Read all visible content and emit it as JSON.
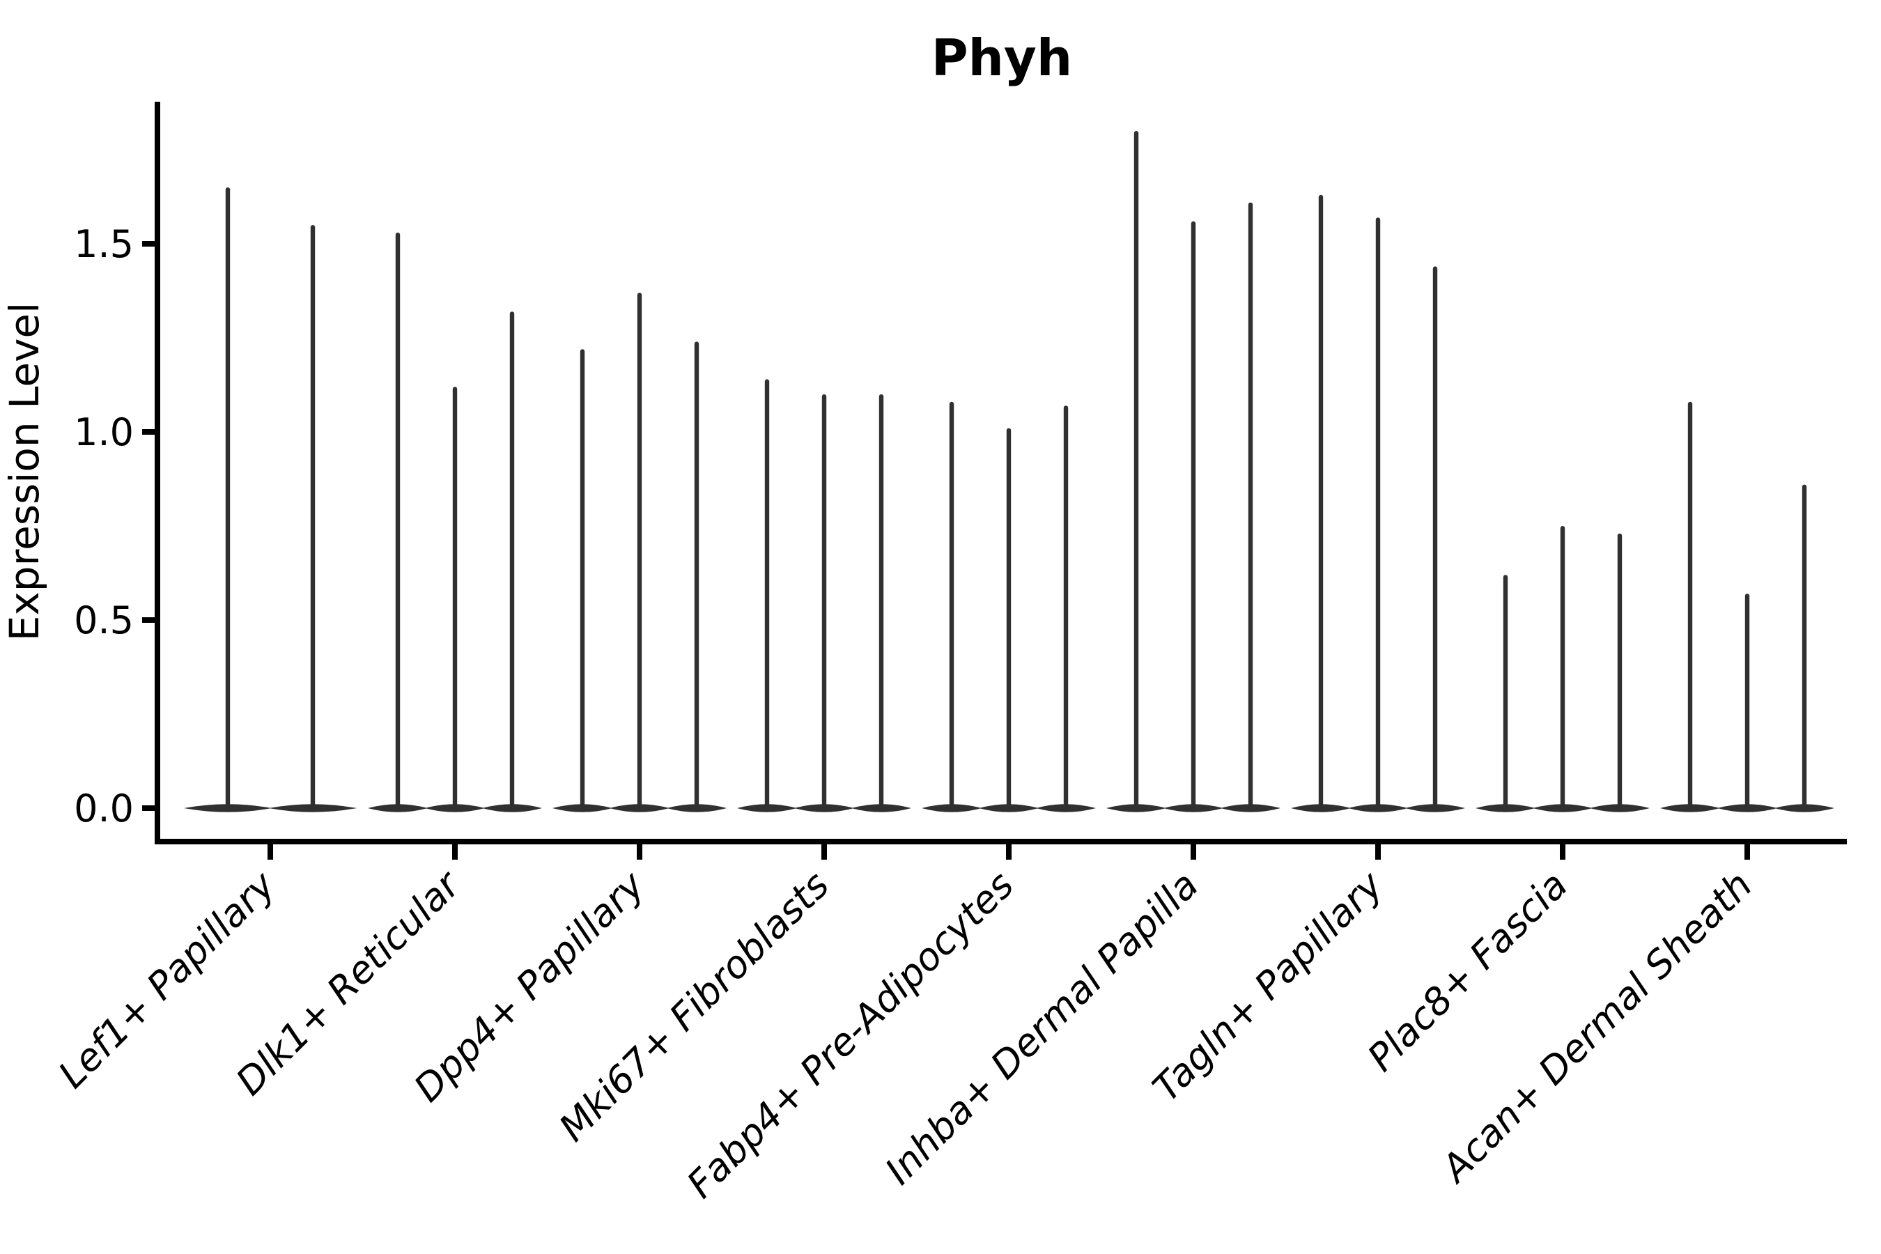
{
  "title": "Phyh",
  "y_axis": {
    "label": "Expression Level",
    "tick_labels": [
      "0.0",
      "0.5",
      "1.0",
      "1.5"
    ],
    "tick_values": [
      0.0,
      0.5,
      1.0,
      1.5
    ],
    "range": [
      -0.09,
      1.88
    ]
  },
  "x_axis": {
    "categories": [
      "Lef1+ Papillary",
      "Dlk1+ Reticular",
      "Dpp4+ Papillary",
      "Mki67+ Fibroblasts",
      "Fabp4+ Pre-Adipocytes",
      "Inhba+ Dermal Papilla",
      "Tagln+ Papillary",
      "Plac8+ Fascia",
      "Acan+ Dermal Sheath"
    ]
  },
  "colors": {
    "violin": "#303030",
    "axis": "#000000",
    "background": "#ffffff"
  },
  "chart_data": {
    "type": "violin",
    "title": "Phyh",
    "xlabel": "",
    "ylabel": "Expression Level",
    "ylim": [
      -0.09,
      1.88
    ],
    "grid": false,
    "legend": "none",
    "categories": [
      "Lef1+ Papillary",
      "Dlk1+ Reticular",
      "Dpp4+ Papillary",
      "Mki67+ Fibroblasts",
      "Fabp4+ Pre-Adipocytes",
      "Inhba+ Dermal Papilla",
      "Tagln+ Papillary",
      "Plac8+ Fascia",
      "Acan+ Dermal Sheath"
    ],
    "groups": [
      {
        "category": "Lef1+ Papillary",
        "violin_max_values": [
          1.65,
          1.55
        ]
      },
      {
        "category": "Dlk1+ Reticular",
        "violin_max_values": [
          1.53,
          1.12,
          1.32
        ]
      },
      {
        "category": "Dpp4+ Papillary",
        "violin_max_values": [
          1.22,
          1.37,
          1.24
        ]
      },
      {
        "category": "Mki67+ Fibroblasts",
        "violin_max_values": [
          1.14,
          1.1,
          1.1
        ]
      },
      {
        "category": "Fabp4+ Pre-Adipocytes",
        "violin_max_values": [
          1.08,
          1.01,
          1.07
        ]
      },
      {
        "category": "Inhba+ Dermal Papilla",
        "violin_max_values": [
          1.8,
          1.56,
          1.61
        ]
      },
      {
        "category": "Tagln+ Papillary",
        "violin_max_values": [
          1.63,
          1.57,
          1.44
        ]
      },
      {
        "category": "Plac8+ Fascia",
        "violin_max_values": [
          0.62,
          0.75,
          0.73
        ]
      },
      {
        "category": "Acan+ Dermal Sheath",
        "violin_max_values": [
          1.08,
          0.57,
          0.86
        ]
      }
    ],
    "description": "Violin plot of Phyh expression per fibroblast cluster; each cluster shows 2-3 extremely narrow violins (spikes) whose bulk sits at 0 with a thin tail up to the max expression value."
  }
}
